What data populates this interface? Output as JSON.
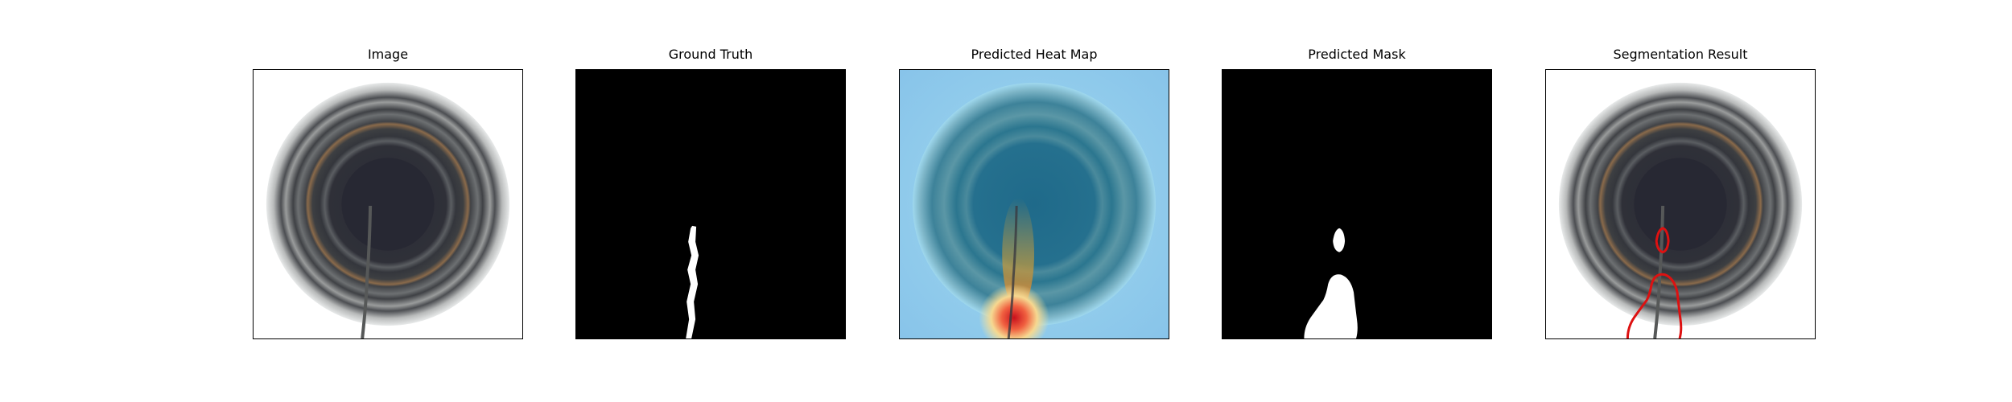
{
  "figure": {
    "panels": [
      {
        "title": "Image"
      },
      {
        "title": "Ground Truth"
      },
      {
        "title": "Predicted Heat Map"
      },
      {
        "title": "Predicted Mask"
      },
      {
        "title": "Segmentation Result"
      }
    ]
  },
  "colors": {
    "frame": "#000000",
    "background_white": "#ffffff",
    "mask_black": "#000000",
    "mask_white": "#ffffff",
    "contour_red": "#dd1111",
    "heatmap_cool": "#8fd0f0",
    "heatmap_hot": "#d01820"
  }
}
